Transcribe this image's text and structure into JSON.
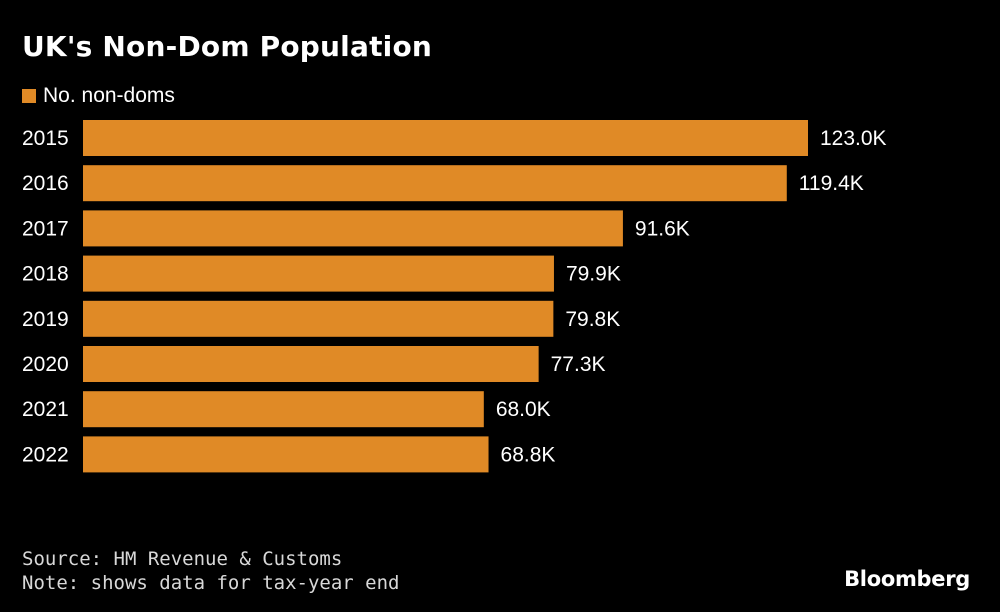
{
  "chart_data": {
    "type": "bar",
    "orientation": "horizontal",
    "title": "UK's Non-Dom Population",
    "categories": [
      "2015",
      "2016",
      "2017",
      "2018",
      "2019",
      "2020",
      "2021",
      "2022"
    ],
    "series": [
      {
        "name": "No. non-doms",
        "values": [
          123.0,
          119.4,
          91.6,
          79.9,
          79.8,
          77.3,
          68.0,
          68.8
        ],
        "labels": [
          "123.0K",
          "119.4K",
          "91.6K",
          "79.9K",
          "79.8K",
          "77.3K",
          "68.0K",
          "68.8K"
        ],
        "color": "#E08A26"
      }
    ],
    "unit": "K",
    "xlim": [
      0,
      123.0
    ],
    "grid": false,
    "legend_position": "top-left"
  },
  "footer": {
    "source": "Source: HM Revenue & Customs",
    "note": "Note: shows data for tax-year end"
  },
  "brand": "Bloomberg",
  "colors": {
    "background": "#000000",
    "bar": "#E08A26",
    "text": "#ffffff"
  }
}
